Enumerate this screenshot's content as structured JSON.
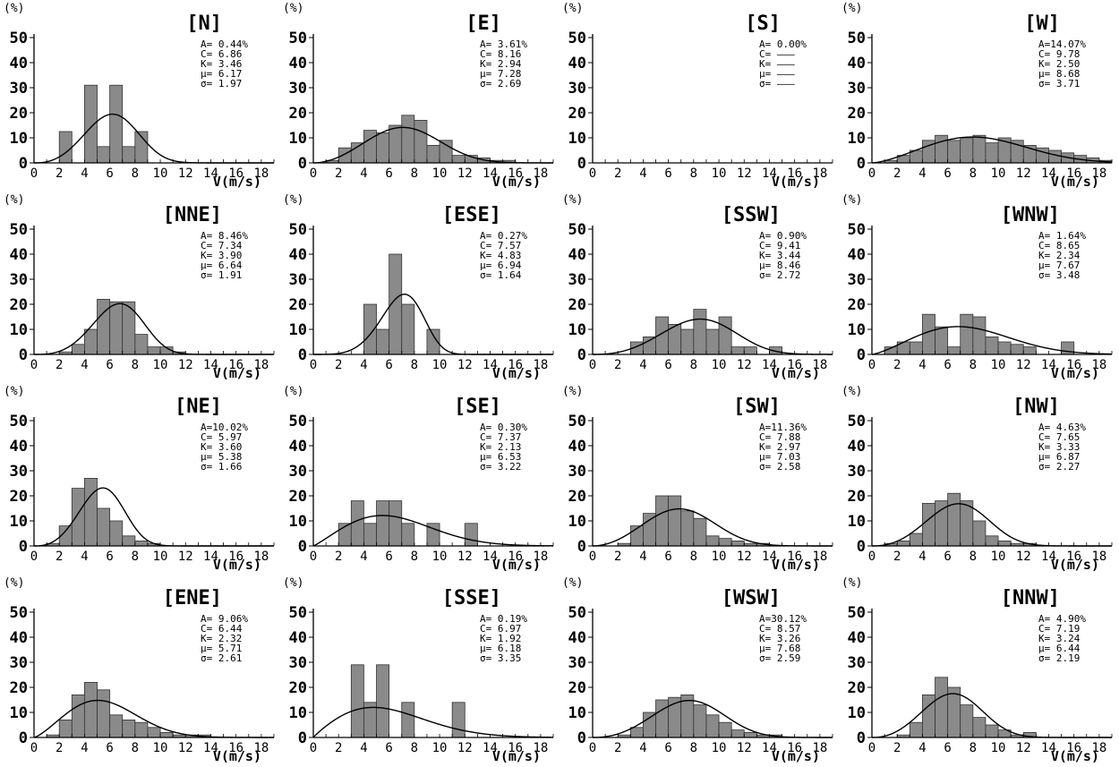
{
  "y_unit": "(%)",
  "x_title": "V(m/s)",
  "colors": {
    "bar_fill": "#8a8a8a",
    "bar_stroke": "#333333",
    "curve": "#000000",
    "axis": "#000000"
  },
  "chart_data": [
    {
      "type": "bar",
      "title": "[N]",
      "ylim": [
        0,
        50
      ],
      "xlim": [
        0,
        19
      ],
      "bin_width": 1,
      "stats": {
        "A": "A= 0.44%",
        "C": "C= 6.86",
        "K": "K= 3.46",
        "mu": "μ= 6.17",
        "sigma": "σ= 1.97"
      },
      "weibull": {
        "C": 6.86,
        "K": 3.46
      },
      "bars": [
        {
          "x": 2,
          "y": 12.5
        },
        {
          "x": 4,
          "y": 31
        },
        {
          "x": 5,
          "y": 6.5
        },
        {
          "x": 6,
          "y": 31
        },
        {
          "x": 7,
          "y": 6.5
        },
        {
          "x": 8,
          "y": 12.5
        }
      ]
    },
    {
      "type": "bar",
      "title": "[E]",
      "ylim": [
        0,
        50
      ],
      "xlim": [
        0,
        19
      ],
      "bin_width": 1,
      "stats": {
        "A": "A= 3.61%",
        "C": "C= 8.16",
        "K": "K= 2.94",
        "mu": "μ= 7.28",
        "sigma": "σ= 2.69"
      },
      "weibull": {
        "C": 8.16,
        "K": 2.94
      },
      "bars": [
        {
          "x": 1,
          "y": 1
        },
        {
          "x": 2,
          "y": 6
        },
        {
          "x": 3,
          "y": 8
        },
        {
          "x": 4,
          "y": 13
        },
        {
          "x": 5,
          "y": 12
        },
        {
          "x": 6,
          "y": 15
        },
        {
          "x": 7,
          "y": 19
        },
        {
          "x": 8,
          "y": 17
        },
        {
          "x": 9,
          "y": 7
        },
        {
          "x": 10,
          "y": 9
        },
        {
          "x": 11,
          "y": 3
        },
        {
          "x": 12,
          "y": 3
        },
        {
          "x": 13,
          "y": 2
        },
        {
          "x": 14,
          "y": 1
        },
        {
          "x": 15,
          "y": 1
        }
      ]
    },
    {
      "type": "bar",
      "title": "[S]",
      "ylim": [
        0,
        50
      ],
      "xlim": [
        0,
        19
      ],
      "bin_width": 1,
      "stats": {
        "A": "A= 0.00%",
        "C": "C= ———",
        "K": "K= ———",
        "mu": "μ= ———",
        "sigma": "σ= ———"
      },
      "weibull": null,
      "bars": []
    },
    {
      "type": "bar",
      "title": "[W]",
      "ylim": [
        0,
        50
      ],
      "xlim": [
        0,
        19
      ],
      "bin_width": 1,
      "stats": {
        "A": "A=14.07%",
        "C": "C= 9.78",
        "K": "K= 2.50",
        "mu": "μ= 8.68",
        "sigma": "σ= 3.71"
      },
      "weibull": {
        "C": 9.78,
        "K": 2.5
      },
      "bars": [
        {
          "x": 1,
          "y": 1
        },
        {
          "x": 2,
          "y": 3
        },
        {
          "x": 3,
          "y": 5
        },
        {
          "x": 4,
          "y": 9
        },
        {
          "x": 5,
          "y": 11
        },
        {
          "x": 6,
          "y": 9
        },
        {
          "x": 7,
          "y": 10
        },
        {
          "x": 8,
          "y": 11
        },
        {
          "x": 9,
          "y": 8
        },
        {
          "x": 10,
          "y": 10
        },
        {
          "x": 11,
          "y": 9
        },
        {
          "x": 12,
          "y": 7
        },
        {
          "x": 13,
          "y": 6
        },
        {
          "x": 14,
          "y": 5
        },
        {
          "x": 15,
          "y": 4
        },
        {
          "x": 16,
          "y": 3
        },
        {
          "x": 17,
          "y": 2
        },
        {
          "x": 18,
          "y": 1
        }
      ]
    },
    {
      "type": "bar",
      "title": "[NNE]",
      "ylim": [
        0,
        50
      ],
      "xlim": [
        0,
        19
      ],
      "bin_width": 1,
      "stats": {
        "A": "A= 8.46%",
        "C": "C= 7.34",
        "K": "K= 3.90",
        "mu": "μ= 6.64",
        "sigma": "σ= 1.91"
      },
      "weibull": {
        "C": 7.34,
        "K": 3.9
      },
      "bars": [
        {
          "x": 2,
          "y": 1
        },
        {
          "x": 3,
          "y": 4
        },
        {
          "x": 4,
          "y": 10
        },
        {
          "x": 5,
          "y": 22
        },
        {
          "x": 6,
          "y": 21
        },
        {
          "x": 7,
          "y": 21
        },
        {
          "x": 8,
          "y": 8
        },
        {
          "x": 9,
          "y": 3
        },
        {
          "x": 10,
          "y": 3
        },
        {
          "x": 11,
          "y": 1
        }
      ]
    },
    {
      "type": "bar",
      "title": "[ESE]",
      "ylim": [
        0,
        50
      ],
      "xlim": [
        0,
        19
      ],
      "bin_width": 1,
      "stats": {
        "A": "A= 0.27%",
        "C": "C= 7.57",
        "K": "K= 4.83",
        "mu": "μ= 6.94",
        "sigma": "σ= 1.64"
      },
      "weibull": {
        "C": 7.57,
        "K": 4.83
      },
      "bars": [
        {
          "x": 4,
          "y": 20
        },
        {
          "x": 5,
          "y": 10
        },
        {
          "x": 6,
          "y": 40
        },
        {
          "x": 7,
          "y": 20
        },
        {
          "x": 9,
          "y": 10
        }
      ]
    },
    {
      "type": "bar",
      "title": "[SSW]",
      "ylim": [
        0,
        50
      ],
      "xlim": [
        0,
        19
      ],
      "bin_width": 1,
      "stats": {
        "A": "A= 0.90%",
        "C": "C= 9.41",
        "K": "K= 3.44",
        "mu": "μ= 8.46",
        "sigma": "σ= 2.72"
      },
      "weibull": {
        "C": 9.41,
        "K": 3.44
      },
      "bars": [
        {
          "x": 3,
          "y": 5
        },
        {
          "x": 4,
          "y": 7
        },
        {
          "x": 5,
          "y": 15
        },
        {
          "x": 6,
          "y": 12
        },
        {
          "x": 7,
          "y": 10
        },
        {
          "x": 8,
          "y": 18
        },
        {
          "x": 9,
          "y": 10
        },
        {
          "x": 10,
          "y": 15
        },
        {
          "x": 11,
          "y": 3
        },
        {
          "x": 12,
          "y": 3
        },
        {
          "x": 14,
          "y": 3
        }
      ]
    },
    {
      "type": "bar",
      "title": "[WNW]",
      "ylim": [
        0,
        50
      ],
      "xlim": [
        0,
        19
      ],
      "bin_width": 1,
      "stats": {
        "A": "A= 1.64%",
        "C": "C= 8.65",
        "K": "K= 2.34",
        "mu": "μ= 7.67",
        "sigma": "σ= 3.48"
      },
      "weibull": {
        "C": 8.65,
        "K": 2.34
      },
      "bars": [
        {
          "x": 1,
          "y": 3
        },
        {
          "x": 2,
          "y": 5
        },
        {
          "x": 3,
          "y": 5
        },
        {
          "x": 4,
          "y": 16
        },
        {
          "x": 5,
          "y": 11
        },
        {
          "x": 6,
          "y": 3
        },
        {
          "x": 7,
          "y": 16
        },
        {
          "x": 8,
          "y": 15
        },
        {
          "x": 9,
          "y": 7
        },
        {
          "x": 10,
          "y": 5
        },
        {
          "x": 11,
          "y": 4
        },
        {
          "x": 12,
          "y": 3
        },
        {
          "x": 15,
          "y": 5
        }
      ]
    },
    {
      "type": "bar",
      "title": "[NE]",
      "ylim": [
        0,
        50
      ],
      "xlim": [
        0,
        19
      ],
      "bin_width": 1,
      "stats": {
        "A": "A=10.02%",
        "C": "C= 5.97",
        "K": "K= 3.60",
        "mu": "μ= 5.38",
        "sigma": "σ= 1.66"
      },
      "weibull": {
        "C": 5.97,
        "K": 3.6
      },
      "bars": [
        {
          "x": 1,
          "y": 1
        },
        {
          "x": 2,
          "y": 8
        },
        {
          "x": 3,
          "y": 23
        },
        {
          "x": 4,
          "y": 27
        },
        {
          "x": 5,
          "y": 15
        },
        {
          "x": 6,
          "y": 10
        },
        {
          "x": 7,
          "y": 4
        },
        {
          "x": 8,
          "y": 2
        },
        {
          "x": 9,
          "y": 1
        }
      ]
    },
    {
      "type": "bar",
      "title": "[SE]",
      "ylim": [
        0,
        50
      ],
      "xlim": [
        0,
        19
      ],
      "bin_width": 1,
      "stats": {
        "A": "A= 0.30%",
        "C": "C= 7.37",
        "K": "K= 2.13",
        "mu": "μ= 6.53",
        "sigma": "σ= 3.22"
      },
      "weibull": {
        "C": 7.37,
        "K": 2.13
      },
      "bars": [
        {
          "x": 2,
          "y": 9
        },
        {
          "x": 3,
          "y": 18
        },
        {
          "x": 4,
          "y": 9
        },
        {
          "x": 5,
          "y": 18
        },
        {
          "x": 6,
          "y": 18
        },
        {
          "x": 7,
          "y": 9
        },
        {
          "x": 9,
          "y": 9
        },
        {
          "x": 12,
          "y": 9
        }
      ]
    },
    {
      "type": "bar",
      "title": "[SW]",
      "ylim": [
        0,
        50
      ],
      "xlim": [
        0,
        19
      ],
      "bin_width": 1,
      "stats": {
        "A": "A=11.36%",
        "C": "C= 7.88",
        "K": "K= 2.97",
        "mu": "μ= 7.03",
        "sigma": "σ= 2.58"
      },
      "weibull": {
        "C": 7.88,
        "K": 2.97
      },
      "bars": [
        {
          "x": 2,
          "y": 1
        },
        {
          "x": 3,
          "y": 8
        },
        {
          "x": 4,
          "y": 13
        },
        {
          "x": 5,
          "y": 20
        },
        {
          "x": 6,
          "y": 20
        },
        {
          "x": 7,
          "y": 14
        },
        {
          "x": 8,
          "y": 11
        },
        {
          "x": 9,
          "y": 4
        },
        {
          "x": 10,
          "y": 3
        },
        {
          "x": 11,
          "y": 2
        },
        {
          "x": 12,
          "y": 1
        },
        {
          "x": 13,
          "y": 1
        }
      ]
    },
    {
      "type": "bar",
      "title": "[NW]",
      "ylim": [
        0,
        50
      ],
      "xlim": [
        0,
        19
      ],
      "bin_width": 1,
      "stats": {
        "A": "A= 4.63%",
        "C": "C= 7.65",
        "K": "K= 3.33",
        "mu": "μ= 6.87",
        "sigma": "σ= 2.27"
      },
      "weibull": {
        "C": 7.65,
        "K": 3.33
      },
      "bars": [
        {
          "x": 1,
          "y": 1
        },
        {
          "x": 2,
          "y": 2
        },
        {
          "x": 3,
          "y": 5
        },
        {
          "x": 4,
          "y": 17
        },
        {
          "x": 5,
          "y": 18
        },
        {
          "x": 6,
          "y": 21
        },
        {
          "x": 7,
          "y": 18
        },
        {
          "x": 8,
          "y": 10
        },
        {
          "x": 9,
          "y": 4
        },
        {
          "x": 10,
          "y": 2
        },
        {
          "x": 11,
          "y": 1
        },
        {
          "x": 12,
          "y": 1
        }
      ]
    },
    {
      "type": "bar",
      "title": "[ENE]",
      "ylim": [
        0,
        50
      ],
      "xlim": [
        0,
        19
      ],
      "bin_width": 1,
      "stats": {
        "A": "A= 9.06%",
        "C": "C= 6.44",
        "K": "K= 2.32",
        "mu": "μ= 5.71",
        "sigma": "σ= 2.61"
      },
      "weibull": {
        "C": 6.44,
        "K": 2.32
      },
      "bars": [
        {
          "x": 1,
          "y": 1
        },
        {
          "x": 2,
          "y": 7
        },
        {
          "x": 3,
          "y": 17
        },
        {
          "x": 4,
          "y": 22
        },
        {
          "x": 5,
          "y": 19
        },
        {
          "x": 6,
          "y": 9
        },
        {
          "x": 7,
          "y": 7
        },
        {
          "x": 8,
          "y": 6
        },
        {
          "x": 9,
          "y": 4
        },
        {
          "x": 10,
          "y": 2
        },
        {
          "x": 11,
          "y": 1
        },
        {
          "x": 12,
          "y": 1
        },
        {
          "x": 13,
          "y": 1
        }
      ]
    },
    {
      "type": "bar",
      "title": "[SSE]",
      "ylim": [
        0,
        50
      ],
      "xlim": [
        0,
        19
      ],
      "bin_width": 1,
      "stats": {
        "A": "A= 0.19%",
        "C": "C= 6.97",
        "K": "K= 1.92",
        "mu": "μ= 6.18",
        "sigma": "σ= 3.35"
      },
      "weibull": {
        "C": 6.97,
        "K": 1.92
      },
      "bars": [
        {
          "x": 3,
          "y": 29
        },
        {
          "x": 4,
          "y": 14
        },
        {
          "x": 5,
          "y": 29
        },
        {
          "x": 7,
          "y": 14
        },
        {
          "x": 11,
          "y": 14
        }
      ]
    },
    {
      "type": "bar",
      "title": "[WSW]",
      "ylim": [
        0,
        50
      ],
      "xlim": [
        0,
        19
      ],
      "bin_width": 1,
      "stats": {
        "A": "A=30.12%",
        "C": "C= 8.57",
        "K": "K= 3.26",
        "mu": "μ= 7.68",
        "sigma": "σ= 2.59"
      },
      "weibull": {
        "C": 8.57,
        "K": 3.26
      },
      "bars": [
        {
          "x": 2,
          "y": 1
        },
        {
          "x": 3,
          "y": 4
        },
        {
          "x": 4,
          "y": 10
        },
        {
          "x": 5,
          "y": 15
        },
        {
          "x": 6,
          "y": 16
        },
        {
          "x": 7,
          "y": 17
        },
        {
          "x": 8,
          "y": 13
        },
        {
          "x": 9,
          "y": 9
        },
        {
          "x": 10,
          "y": 6
        },
        {
          "x": 11,
          "y": 3
        },
        {
          "x": 12,
          "y": 2
        },
        {
          "x": 13,
          "y": 1
        },
        {
          "x": 14,
          "y": 1
        }
      ]
    },
    {
      "type": "bar",
      "title": "[NNW]",
      "ylim": [
        0,
        50
      ],
      "xlim": [
        0,
        19
      ],
      "bin_width": 1,
      "stats": {
        "A": "A= 4.90%",
        "C": "C= 7.19",
        "K": "K= 3.24",
        "mu": "μ= 6.44",
        "sigma": "σ= 2.19"
      },
      "weibull": {
        "C": 7.19,
        "K": 3.24
      },
      "bars": [
        {
          "x": 2,
          "y": 1
        },
        {
          "x": 3,
          "y": 6
        },
        {
          "x": 4,
          "y": 17
        },
        {
          "x": 5,
          "y": 24
        },
        {
          "x": 6,
          "y": 20
        },
        {
          "x": 7,
          "y": 13
        },
        {
          "x": 8,
          "y": 8
        },
        {
          "x": 9,
          "y": 5
        },
        {
          "x": 10,
          "y": 3
        },
        {
          "x": 11,
          "y": 1
        },
        {
          "x": 12,
          "y": 2
        }
      ]
    }
  ]
}
